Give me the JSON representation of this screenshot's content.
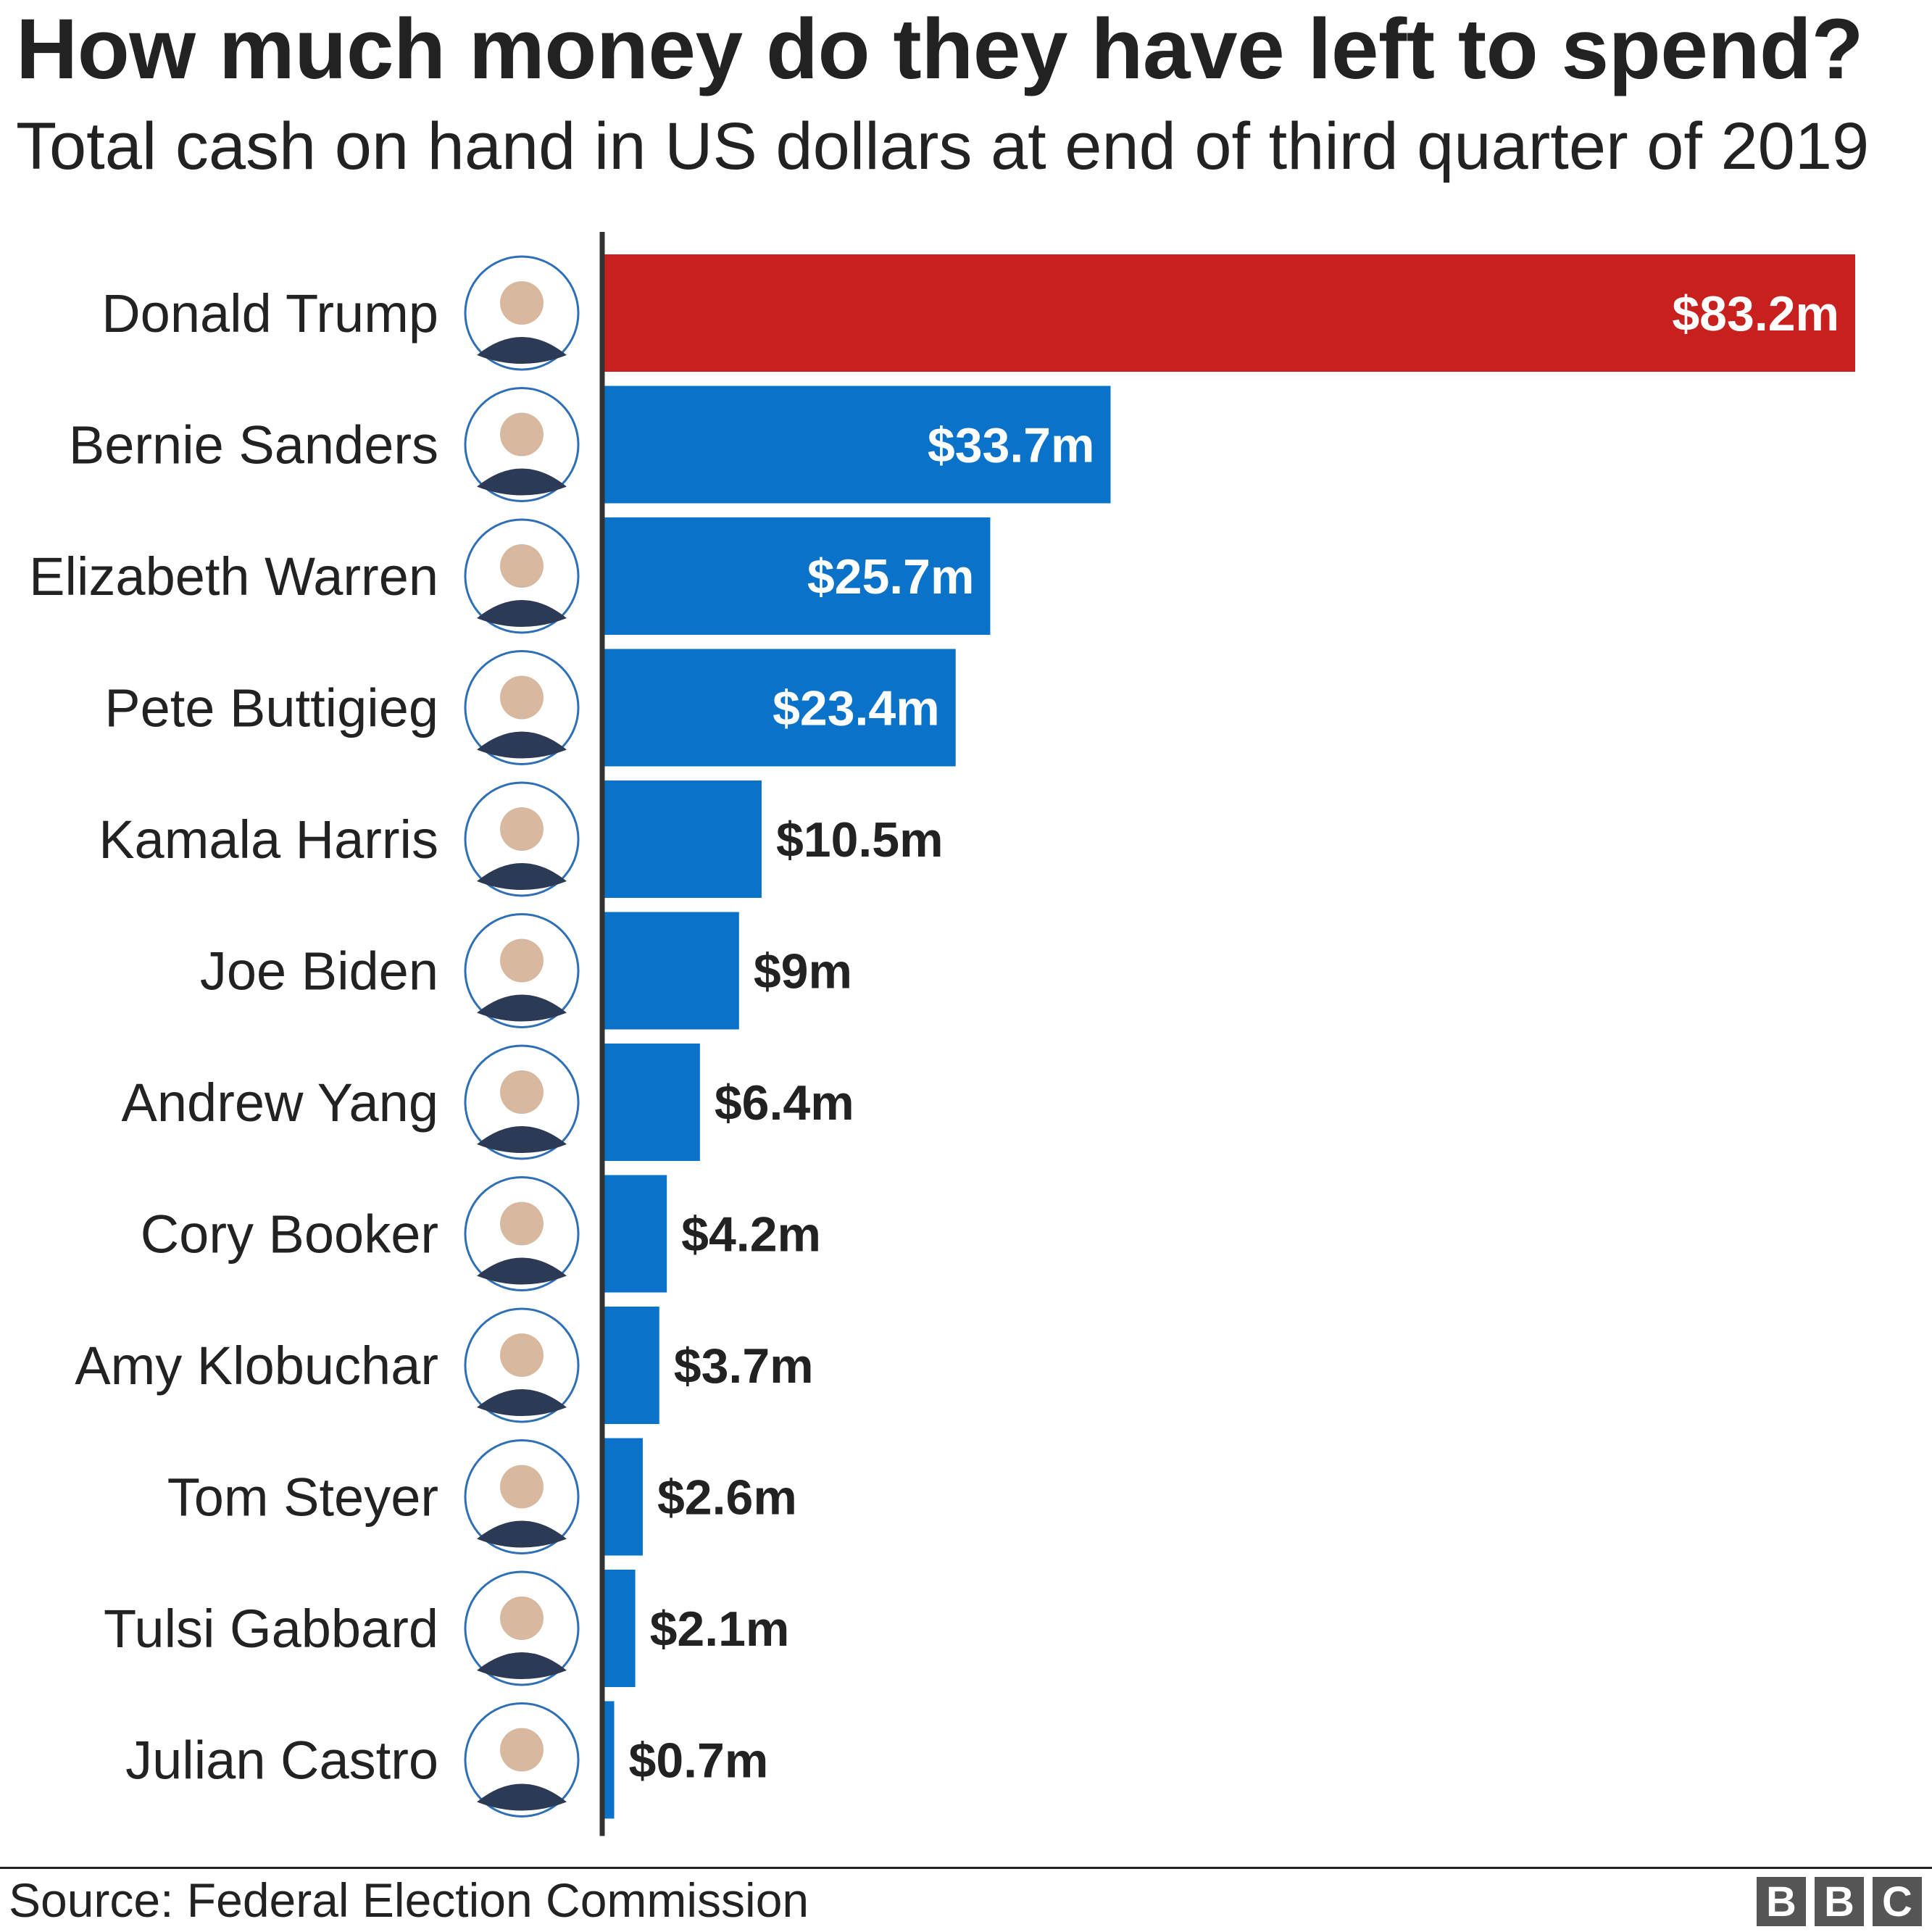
{
  "header": {
    "title": "How much money do they have left to spend?",
    "subtitle": "Total cash on hand in US dollars at end of third quarter of 2019"
  },
  "footer": {
    "source": "Source: Federal Election Commission",
    "logo_letters": [
      "B",
      "B",
      "C"
    ]
  },
  "colors": {
    "republican": "#c8201e",
    "democrat": "#0a73c9",
    "text": "#222222",
    "inside_label": "#ffffff",
    "axis": "#333333"
  },
  "chart_data": {
    "type": "bar",
    "orientation": "horizontal",
    "title": "How much money do they have left to spend?",
    "subtitle": "Total cash on hand in US dollars at end of third quarter of 2019",
    "unit": "US dollars (millions)",
    "xlim": [
      0,
      83.2
    ],
    "grid": false,
    "legend": "none",
    "categories": [
      "Donald Trump",
      "Bernie Sanders",
      "Elizabeth Warren",
      "Pete Buttigieg",
      "Kamala Harris",
      "Joe Biden",
      "Andrew Yang",
      "Cory Booker",
      "Amy Klobuchar",
      "Tom Steyer",
      "Tulsi Gabbard",
      "Julian Castro"
    ],
    "values": [
      83.2,
      33.7,
      25.7,
      23.4,
      10.5,
      9,
      6.4,
      4.2,
      3.7,
      2.6,
      2.1,
      0.7
    ],
    "labels": [
      "$83.2m",
      "$33.7m",
      "$25.7m",
      "$23.4m",
      "$10.5m",
      "$9m",
      "$6.4m",
      "$4.2m",
      "$3.7m",
      "$2.6m",
      "$2.1m",
      "$0.7m"
    ],
    "parties": [
      "republican",
      "democrat",
      "democrat",
      "democrat",
      "democrat",
      "democrat",
      "democrat",
      "democrat",
      "democrat",
      "democrat",
      "democrat",
      "democrat"
    ],
    "portrait_icons": [
      "trump-portrait-icon",
      "sanders-portrait-icon",
      "warren-portrait-icon",
      "buttigieg-portrait-icon",
      "harris-portrait-icon",
      "biden-portrait-icon",
      "yang-portrait-icon",
      "booker-portrait-icon",
      "klobuchar-portrait-icon",
      "steyer-portrait-icon",
      "gabbard-portrait-icon",
      "castro-portrait-icon"
    ]
  }
}
